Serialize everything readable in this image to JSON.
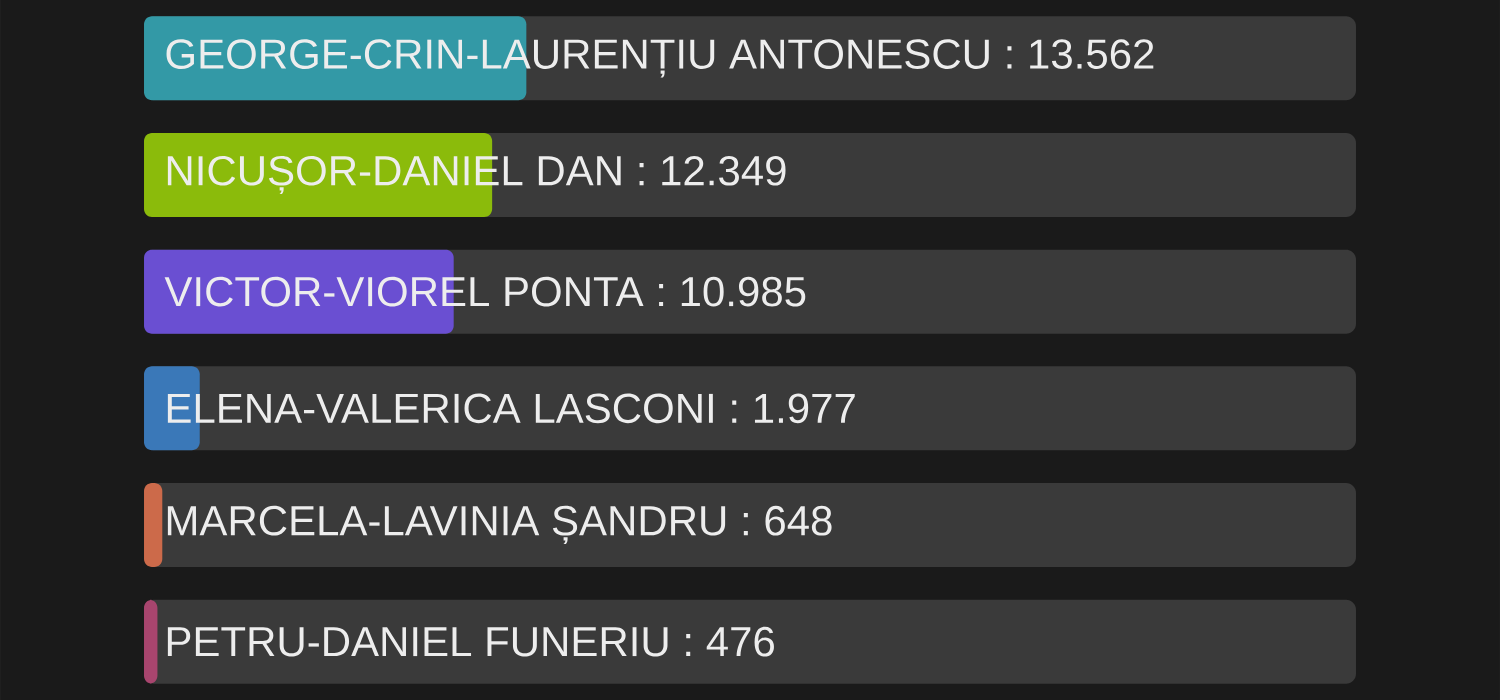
{
  "chart_data": {
    "type": "bar",
    "orientation": "horizontal",
    "categories": [
      null,
      null,
      null,
      null,
      null,
      null
    ],
    "values": [
      13562,
      12349,
      10985,
      1977,
      648,
      476
    ],
    "value_labels": [
      "GEORGE-CRIN-LAURENȚIU ANTONESCU : 13.562",
      "NICUȘOR-DANIEL DAN : 12.349",
      "VICTOR-VIOREL PONTA : 10.985",
      "ELENA-VALERICA LASCONI : 1.977",
      "MARCELA-LAVINIA ȘANDRU : 648",
      "PETRU-DANIEL FUNERIU : 476"
    ],
    "colors": [
      "#3399a6",
      "#8bbb0b",
      "#6a4fd2",
      "#3a78b8",
      "#cc6a4a",
      "#a8456e"
    ]
  }
}
